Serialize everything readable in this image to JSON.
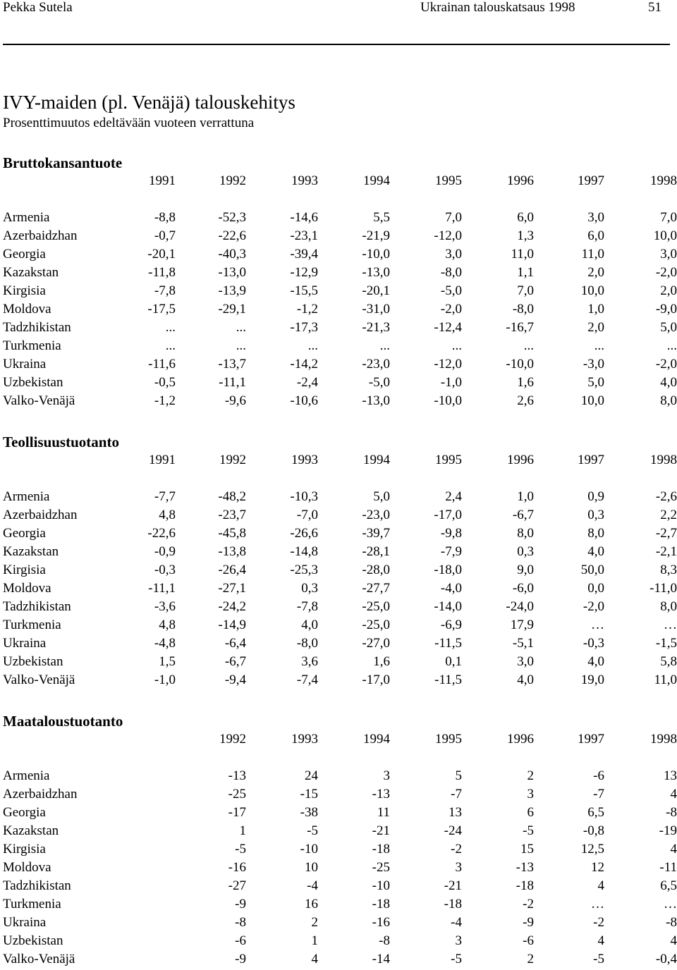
{
  "header": {
    "author": "Pekka Sutela",
    "publication": "Ukrainan talouskatsaus 1998",
    "page_number": "51"
  },
  "title": "IVY-maiden (pl. Venäjä) talouskehitys",
  "subtitle": "Prosenttimuutos edeltävään vuoteen verrattuna",
  "sections": [
    {
      "heading": "Bruttokansantuote",
      "years": [
        "1991",
        "1992",
        "1993",
        "1994",
        "1995",
        "1996",
        "1997",
        "1998"
      ],
      "rows": [
        {
          "country": "Armenia",
          "values": [
            "-8,8",
            "-52,3",
            "-14,6",
            "5,5",
            "7,0",
            "6,0",
            "3,0",
            "7,0"
          ]
        },
        {
          "country": "Azerbaidzhan",
          "values": [
            "-0,7",
            "-22,6",
            "-23,1",
            "-21,9",
            "-12,0",
            "1,3",
            "6,0",
            "10,0"
          ]
        },
        {
          "country": "Georgia",
          "values": [
            "-20,1",
            "-40,3",
            "-39,4",
            "-10,0",
            "3,0",
            "11,0",
            "11,0",
            "3,0"
          ]
        },
        {
          "country": "Kazakstan",
          "values": [
            "-11,8",
            "-13,0",
            "-12,9",
            "-13,0",
            "-8,0",
            "1,1",
            "2,0",
            "-2,0"
          ]
        },
        {
          "country": "Kirgisia",
          "values": [
            "-7,8",
            "-13,9",
            "-15,5",
            "-20,1",
            "-5,0",
            "7,0",
            "10,0",
            "2,0"
          ]
        },
        {
          "country": "Moldova",
          "values": [
            "-17,5",
            "-29,1",
            "-1,2",
            "-31,0",
            "-2,0",
            "-8,0",
            "1,0",
            "-9,0"
          ]
        },
        {
          "country": "Tadzhikistan",
          "values": [
            "...",
            "...",
            "-17,3",
            "-21,3",
            "-12,4",
            "-16,7",
            "2,0",
            "5,0"
          ]
        },
        {
          "country": "Turkmenia",
          "values": [
            "...",
            "...",
            "...",
            "...",
            "...",
            "...",
            "...",
            "..."
          ]
        },
        {
          "country": "Ukraina",
          "values": [
            "-11,6",
            "-13,7",
            "-14,2",
            "-23,0",
            "-12,0",
            "-10,0",
            "-3,0",
            "-2,0"
          ]
        },
        {
          "country": "Uzbekistan",
          "values": [
            "-0,5",
            "-11,1",
            "-2,4",
            "-5,0",
            "-1,0",
            "1,6",
            "5,0",
            "4,0"
          ]
        },
        {
          "country": "Valko-Venäjä",
          "values": [
            "-1,2",
            "-9,6",
            "-10,6",
            "-13,0",
            "-10,0",
            "2,6",
            "10,0",
            "8,0"
          ]
        }
      ]
    },
    {
      "heading": "Teollisuustuotanto",
      "years": [
        "1991",
        "1992",
        "1993",
        "1994",
        "1995",
        "1996",
        "1997",
        "1998"
      ],
      "rows": [
        {
          "country": "Armenia",
          "values": [
            "-7,7",
            "-48,2",
            "-10,3",
            "5,0",
            "2,4",
            "1,0",
            "0,9",
            "-2,6"
          ]
        },
        {
          "country": "Azerbaidzhan",
          "values": [
            "4,8",
            "-23,7",
            "-7,0",
            "-23,0",
            "-17,0",
            "-6,7",
            "0,3",
            "2,2"
          ]
        },
        {
          "country": "Georgia",
          "values": [
            "-22,6",
            "-45,8",
            "-26,6",
            "-39,7",
            "-9,8",
            "8,0",
            "8,0",
            "-2,7"
          ]
        },
        {
          "country": "Kazakstan",
          "values": [
            "-0,9",
            "-13,8",
            "-14,8",
            "-28,1",
            "-7,9",
            "0,3",
            "4,0",
            "-2,1"
          ]
        },
        {
          "country": "Kirgisia",
          "values": [
            "-0,3",
            "-26,4",
            "-25,3",
            "-28,0",
            "-18,0",
            "9,0",
            "50,0",
            "8,3"
          ]
        },
        {
          "country": "Moldova",
          "values": [
            "-11,1",
            "-27,1",
            "0,3",
            "-27,7",
            "-4,0",
            "-6,0",
            "0,0",
            "-11,0"
          ]
        },
        {
          "country": "Tadzhikistan",
          "values": [
            "-3,6",
            "-24,2",
            "-7,8",
            "-25,0",
            "-14,0",
            "-24,0",
            "-2,0",
            "8,0"
          ]
        },
        {
          "country": "Turkmenia",
          "values": [
            "4,8",
            "-14,9",
            "4,0",
            "-25,0",
            "-6,9",
            "17,9",
            "…",
            "…"
          ]
        },
        {
          "country": "Ukraina",
          "values": [
            "-4,8",
            "-6,4",
            "-8,0",
            "-27,0",
            "-11,5",
            "-5,1",
            "-0,3",
            "-1,5"
          ]
        },
        {
          "country": "Uzbekistan",
          "values": [
            "1,5",
            "-6,7",
            "3,6",
            "1,6",
            "0,1",
            "3,0",
            "4,0",
            "5,8"
          ]
        },
        {
          "country": "Valko-Venäjä",
          "values": [
            "-1,0",
            "-9,4",
            "-7,4",
            "-17,0",
            "-11,5",
            "4,0",
            "19,0",
            "11,0"
          ]
        }
      ]
    },
    {
      "heading": "Maataloustuotanto",
      "years": [
        "1992",
        "1993",
        "1994",
        "1995",
        "1996",
        "1997",
        "1998"
      ],
      "rows": [
        {
          "country": "Armenia",
          "values": [
            "-13",
            "24",
            "3",
            "5",
            "2",
            "-6",
            "13"
          ]
        },
        {
          "country": "Azerbaidzhan",
          "values": [
            "-25",
            "-15",
            "-13",
            "-7",
            "3",
            "-7",
            "4"
          ]
        },
        {
          "country": "Georgia",
          "values": [
            "-17",
            "-38",
            "11",
            "13",
            "6",
            "6,5",
            "-8"
          ]
        },
        {
          "country": "Kazakstan",
          "values": [
            "1",
            "-5",
            "-21",
            "-24",
            "-5",
            "-0,8",
            "-19"
          ]
        },
        {
          "country": "Kirgisia",
          "values": [
            "-5",
            "-10",
            "-18",
            "-2",
            "15",
            "12,5",
            "4"
          ]
        },
        {
          "country": "Moldova",
          "values": [
            "-16",
            "10",
            "-25",
            "3",
            "-13",
            "12",
            "-11"
          ]
        },
        {
          "country": "Tadzhikistan",
          "values": [
            "-27",
            "-4",
            "-10",
            "-21",
            "-18",
            "4",
            "6,5"
          ]
        },
        {
          "country": "Turkmenia",
          "values": [
            "-9",
            "16",
            "-18",
            "-18",
            "-2",
            "…",
            "…"
          ]
        },
        {
          "country": "Ukraina",
          "values": [
            "-8",
            "2",
            "-16",
            "-4",
            "-9",
            "-2",
            "-8"
          ]
        },
        {
          "country": "Uzbekistan",
          "values": [
            "-6",
            "1",
            "-8",
            "3",
            "-6",
            "4",
            "4"
          ]
        },
        {
          "country": "Valko-Venäjä",
          "values": [
            "-9",
            "4",
            "-14",
            "-5",
            "2",
            "-5",
            "-0,4"
          ]
        }
      ]
    }
  ]
}
